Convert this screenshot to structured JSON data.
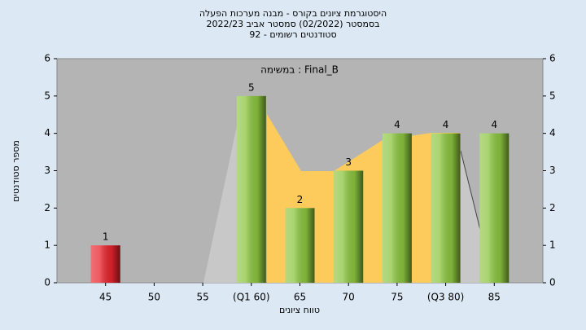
{
  "chart_data": {
    "type": "bar",
    "title": [
      "היסטוגרמת ציונים בקורס - מבנה מערכות הפעלה",
      "בסמסטר  (02/2022)  סמסטר אביב 2022/23",
      "סטודנטים רשומים - 92"
    ],
    "annotation": "במשימה : Final_B",
    "y_label": "מספר סטודנטים",
    "x_label": "טווח ציונים",
    "categories": [
      "45",
      "50",
      "55",
      "(Q1 60)",
      "65",
      "70",
      "75",
      "(Q3 80)",
      "85"
    ],
    "values": [
      1,
      0,
      0,
      5,
      2,
      3,
      4,
      4,
      4
    ],
    "colors": [
      "#e8232c",
      "#8cc63f",
      "#8cc63f",
      "#8cc63f",
      "#8cc63f",
      "#8cc63f",
      "#8cc63f",
      "#8cc63f",
      "#8cc63f"
    ],
    "ylim": [
      0,
      6
    ],
    "yticks": [
      0,
      1,
      2,
      3,
      4,
      5,
      6
    ],
    "grid": false
  }
}
